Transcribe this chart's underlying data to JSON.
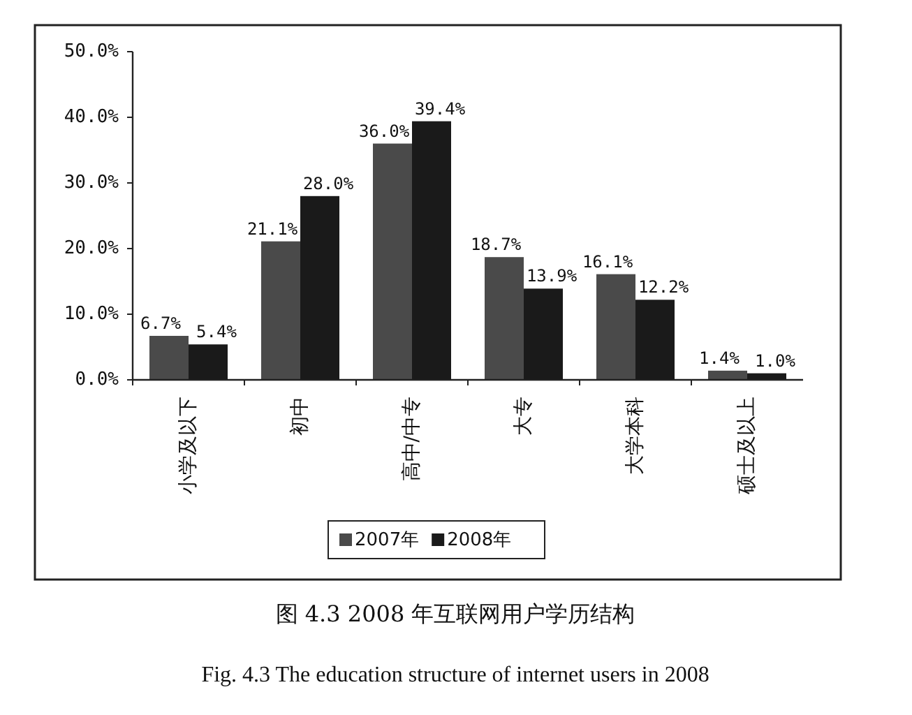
{
  "chart_data": {
    "type": "bar",
    "title": "图 4.3 2008 年互联网用户学历结构",
    "subtitle": "Fig. 4.3 The education structure of internet users in 2008",
    "categories": [
      "小学及以下",
      "初中",
      "高中/中专",
      "大专",
      "大学本科",
      "硕士及以上"
    ],
    "series": [
      {
        "name": "2007年",
        "color": "#4a4a4a",
        "values": [
          6.7,
          21.1,
          36.0,
          18.7,
          16.1,
          1.4
        ],
        "value_labels": [
          "6.7%",
          "21.1%",
          "36.0%",
          "18.7%",
          "16.1%",
          "1.4%"
        ]
      },
      {
        "name": "2008年",
        "color": "#1a1a1a",
        "values": [
          5.4,
          28.0,
          39.4,
          13.9,
          12.2,
          1.0
        ],
        "value_labels": [
          "5.4%",
          "28.0%",
          "39.4%",
          "13.9%",
          "12.2%",
          "1.0%"
        ]
      }
    ],
    "ylim": [
      0,
      50
    ],
    "yticks": [
      {
        "value": 0,
        "label": "0.0%"
      },
      {
        "value": 10,
        "label": "10.0%"
      },
      {
        "value": 20,
        "label": "20.0%"
      },
      {
        "value": 30,
        "label": "30.0%"
      },
      {
        "value": 40,
        "label": "40.0%"
      },
      {
        "value": 50,
        "label": "50.0%"
      }
    ],
    "grid": false,
    "legend": "bottom"
  }
}
